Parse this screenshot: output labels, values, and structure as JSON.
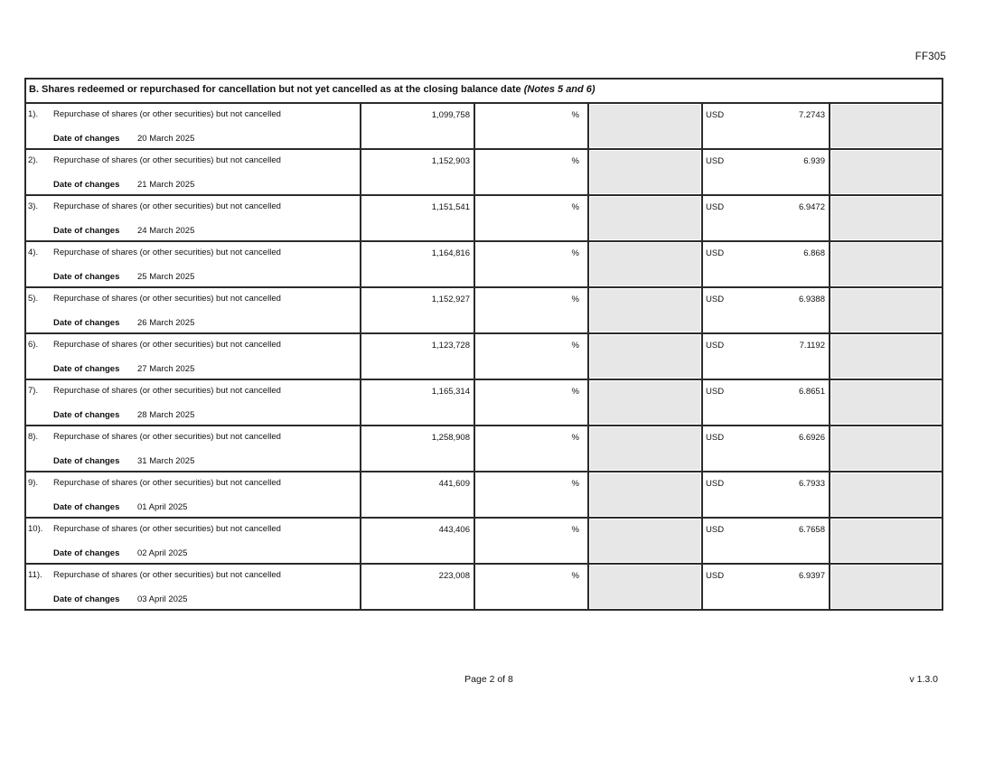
{
  "page": {
    "form_code": "FF305",
    "footer": {
      "page_indicator": "Page 2 of 8",
      "version": "v 1.3.0"
    }
  },
  "section": {
    "title_main": "B. Shares redeemed or repurchased for cancellation but not yet cancelled as at the closing balance date ",
    "title_notes": "(Notes 5 and 6)"
  },
  "colors": {
    "shaded_cell": "#e7e7e7",
    "border": "#2b2b2b"
  },
  "table": {
    "date_label": "Date of changes",
    "rows": [
      {
        "index": "1).",
        "description": "Repurchase of shares (or other securities) but not cancelled",
        "quantity": "1,099,758",
        "percent": "%",
        "currency": "USD",
        "price": "7.2743",
        "date": "20 March 2025"
      },
      {
        "index": "2).",
        "description": "Repurchase of shares (or other securities) but not cancelled",
        "quantity": "1,152,903",
        "percent": "%",
        "currency": "USD",
        "price": "6.939",
        "date": "21 March 2025"
      },
      {
        "index": "3).",
        "description": "Repurchase of shares (or other securities) but not cancelled",
        "quantity": "1,151,541",
        "percent": "%",
        "currency": "USD",
        "price": "6.9472",
        "date": "24 March 2025"
      },
      {
        "index": "4).",
        "description": "Repurchase of shares (or other securities) but not cancelled",
        "quantity": "1,164,816",
        "percent": "%",
        "currency": "USD",
        "price": "6.868",
        "date": "25 March 2025"
      },
      {
        "index": "5).",
        "description": "Repurchase of shares (or other securities) but not cancelled",
        "quantity": "1,152,927",
        "percent": "%",
        "currency": "USD",
        "price": "6.9388",
        "date": "26 March 2025"
      },
      {
        "index": "6).",
        "description": "Repurchase of shares (or other securities) but not cancelled",
        "quantity": "1,123,728",
        "percent": "%",
        "currency": "USD",
        "price": "7.1192",
        "date": "27 March 2025"
      },
      {
        "index": "7).",
        "description": "Repurchase of shares (or other securities) but not cancelled",
        "quantity": "1,165,314",
        "percent": "%",
        "currency": "USD",
        "price": "6.8651",
        "date": "28 March 2025"
      },
      {
        "index": "8).",
        "description": "Repurchase of shares (or other securities) but not cancelled",
        "quantity": "1,258,908",
        "percent": "%",
        "currency": "USD",
        "price": "6.6926",
        "date": "31 March 2025"
      },
      {
        "index": "9).",
        "description": "Repurchase of shares (or other securities) but not cancelled",
        "quantity": "441,609",
        "percent": "%",
        "currency": "USD",
        "price": "6.7933",
        "date": "01 April 2025"
      },
      {
        "index": "10).",
        "description": "Repurchase of shares (or other securities) but not cancelled",
        "quantity": "443,406",
        "percent": "%",
        "currency": "USD",
        "price": "6.7658",
        "date": "02 April 2025"
      },
      {
        "index": "11).",
        "description": "Repurchase of shares (or other securities) but not cancelled",
        "quantity": "223,008",
        "percent": "%",
        "currency": "USD",
        "price": "6.9397",
        "date": "03 April 2025"
      }
    ]
  }
}
